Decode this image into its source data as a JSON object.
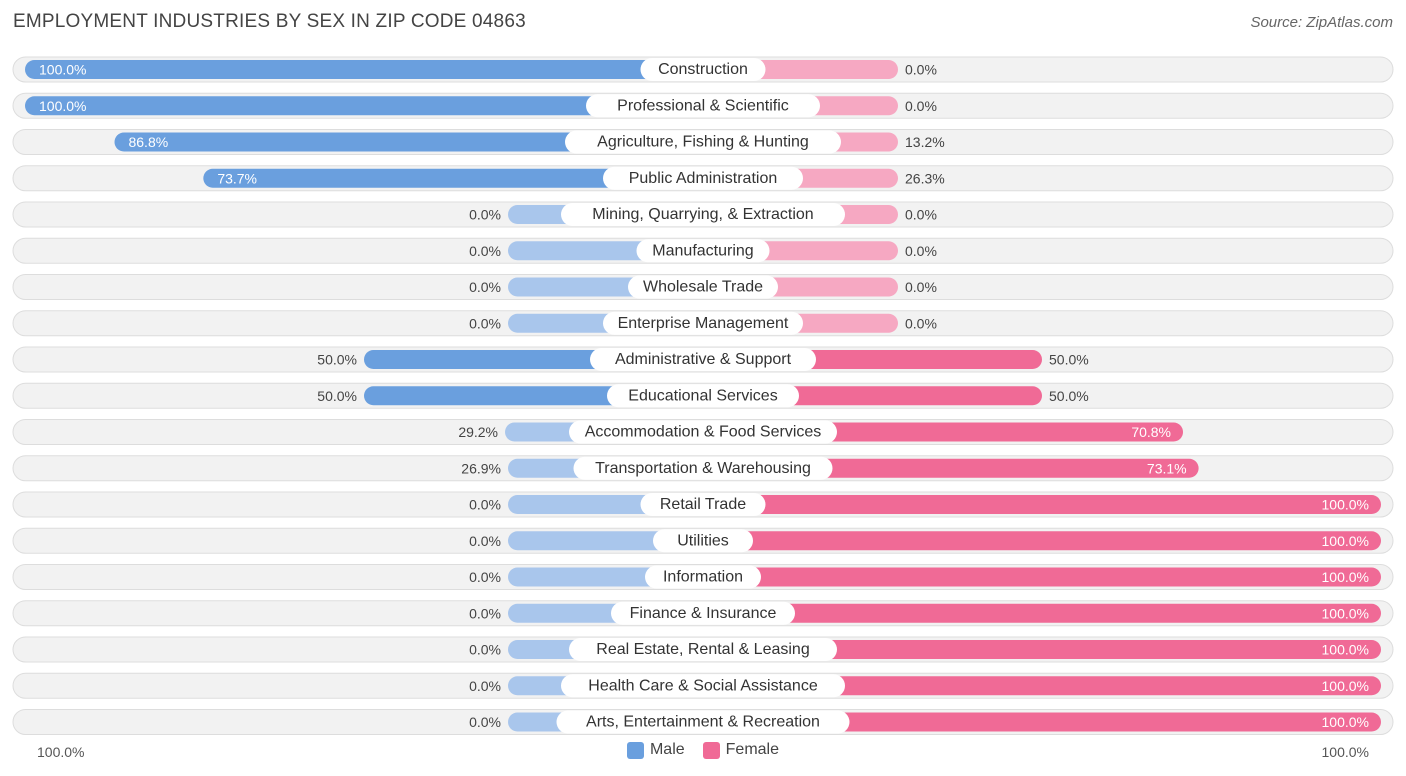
{
  "title": "EMPLOYMENT INDUSTRIES BY SEX IN ZIP CODE 04863",
  "source": "Source: ZipAtlas.com",
  "colors": {
    "male_strong": "#6a9fde",
    "male_light": "#a9c6ec",
    "female_strong": "#f06a96",
    "female_light": "#f6a8c2",
    "row_bg": "#f2f2f2",
    "row_border": "#dddddd"
  },
  "legend": {
    "male": "Male",
    "female": "Female"
  },
  "axis": {
    "left": "100.0%",
    "right": "100.0%"
  },
  "chart_data": {
    "type": "bar",
    "orientation": "horizontal-diverging",
    "title": "EMPLOYMENT INDUSTRIES BY SEX IN ZIP CODE 04863",
    "xlim": [
      -100,
      100
    ],
    "categories": [
      "Construction",
      "Professional & Scientific",
      "Agriculture, Fishing & Hunting",
      "Public Administration",
      "Mining, Quarrying, & Extraction",
      "Manufacturing",
      "Wholesale Trade",
      "Enterprise Management",
      "Administrative & Support",
      "Educational Services",
      "Accommodation & Food Services",
      "Transportation & Warehousing",
      "Retail Trade",
      "Utilities",
      "Information",
      "Finance & Insurance",
      "Real Estate, Rental & Leasing",
      "Health Care & Social Assistance",
      "Arts, Entertainment & Recreation"
    ],
    "series": [
      {
        "name": "Male",
        "values": [
          100.0,
          100.0,
          86.8,
          73.7,
          0.0,
          0.0,
          0.0,
          0.0,
          50.0,
          50.0,
          29.2,
          26.9,
          0.0,
          0.0,
          0.0,
          0.0,
          0.0,
          0.0,
          0.0
        ]
      },
      {
        "name": "Female",
        "values": [
          0.0,
          0.0,
          13.2,
          26.3,
          0.0,
          0.0,
          0.0,
          0.0,
          50.0,
          50.0,
          70.8,
          73.1,
          100.0,
          100.0,
          100.0,
          100.0,
          100.0,
          100.0,
          100.0
        ]
      }
    ]
  }
}
